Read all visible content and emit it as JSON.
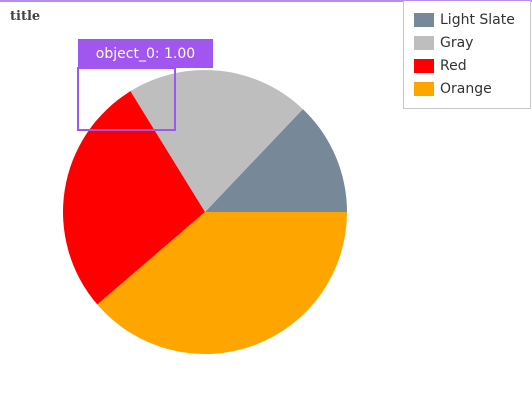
{
  "chart_data": {
    "type": "pie",
    "title": "title",
    "legend_position": "top-right",
    "series": [
      {
        "name": "Light Slate",
        "value": 12.9,
        "color": "#778899"
      },
      {
        "name": "Gray",
        "value": 20.9,
        "color": "#BEBEBE"
      },
      {
        "name": "Red",
        "value": 27.5,
        "color": "#FF0000"
      },
      {
        "name": "Orange",
        "value": 38.7,
        "color": "#FFA500"
      }
    ],
    "start": "three o'clock",
    "direction": "counter-clockwise"
  },
  "annotation": {
    "label": "object_0: 1.00",
    "color": "#A256F0"
  }
}
